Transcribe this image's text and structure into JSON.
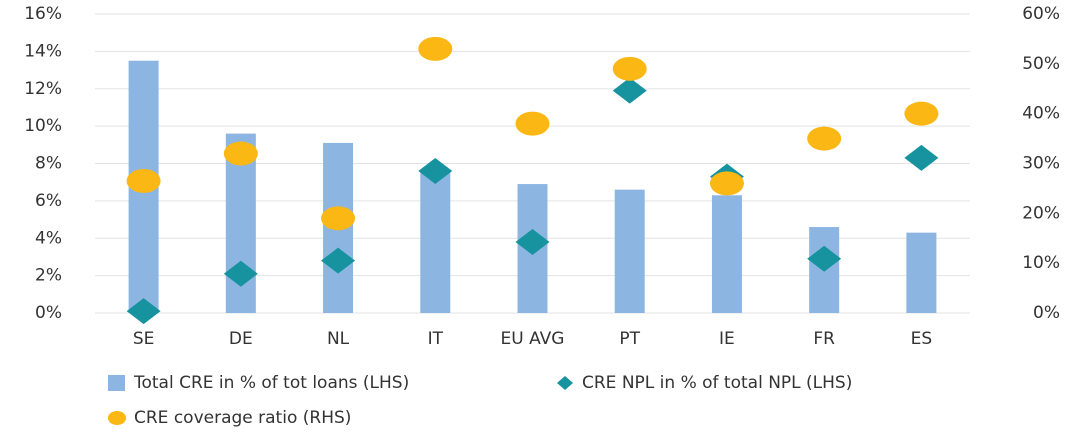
{
  "chart_data": {
    "type": "bar",
    "categories": [
      "SE",
      "DE",
      "NL",
      "IT",
      "EU AVG",
      "PT",
      "IE",
      "FR",
      "ES"
    ],
    "series": [
      {
        "name": "Total CRE in % of tot loans (LHS)",
        "color": "#8db5e2",
        "marker": "bar",
        "values": [
          13.5,
          9.6,
          9.1,
          7.5,
          6.9,
          6.6,
          6.3,
          4.6,
          4.3
        ]
      },
      {
        "name": "CRE NPL in % of total NPL (LHS)",
        "color": "#16939e",
        "marker": "diamond",
        "values": [
          0.1,
          2.1,
          2.8,
          7.6,
          3.8,
          11.9,
          7.3,
          2.9,
          8.3
        ]
      },
      {
        "name": "CRE coverage ratio (RHS)",
        "color": "#fbb714",
        "marker": "circle",
        "axis": "y2",
        "values": [
          26.5,
          32,
          19,
          53,
          38,
          49,
          26,
          35,
          40
        ]
      }
    ],
    "ylim": [
      0,
      16
    ],
    "yticks": [
      {
        "value": 0,
        "label": "0%"
      },
      {
        "value": 2,
        "label": "2%"
      },
      {
        "value": 4,
        "label": "4%"
      },
      {
        "value": 6,
        "label": "6%"
      },
      {
        "value": 8,
        "label": "8%"
      },
      {
        "value": 10,
        "label": "10%"
      },
      {
        "value": 12,
        "label": "12%"
      },
      {
        "value": 14,
        "label": "14%"
      },
      {
        "value": 16,
        "label": "16%"
      }
    ],
    "y2lim": [
      0,
      60
    ],
    "y2ticks": [
      {
        "value": 0,
        "label": "0%"
      },
      {
        "value": 10,
        "label": "10%"
      },
      {
        "value": 20,
        "label": "20%"
      },
      {
        "value": 30,
        "label": "30%"
      },
      {
        "value": 40,
        "label": "40%"
      },
      {
        "value": 50,
        "label": "50%"
      },
      {
        "value": 60,
        "label": "60%"
      }
    ],
    "grid": true,
    "legend": "bottom"
  }
}
